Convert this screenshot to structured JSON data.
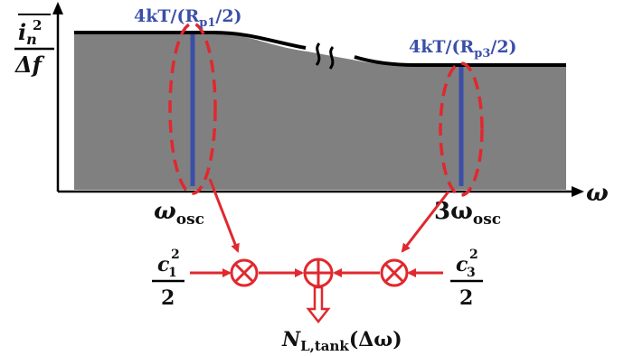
{
  "labels": {
    "y_axis_numerator_base": "i",
    "y_axis_numerator_sub": "n",
    "y_axis_numerator_sup": "2",
    "y_axis_denominator": "Δf",
    "x_axis": "ω",
    "peak1": {
      "prefix": "4kT/(R",
      "sub": "p1",
      "suffix": "/2)"
    },
    "peak3": {
      "prefix": "4kT/(R",
      "sub": "p3",
      "suffix": "/2)"
    },
    "freq1": {
      "base": "ω",
      "sub": "osc"
    },
    "freq3": {
      "base": "3ω",
      "sub": "osc"
    },
    "coef1": {
      "base": "c",
      "sub": "1",
      "sup": "2",
      "den": "2"
    },
    "coef3": {
      "base": "c",
      "sub": "3",
      "sup": "2",
      "den": "2"
    },
    "output": {
      "base": "N",
      "sub": "L,tank",
      "arg": "(Δω)"
    },
    "break_mark": "≈"
  },
  "colors": {
    "noise_fill": "#808080",
    "curve": "#000000",
    "harmonic_line": "#3b4fa8",
    "signal_path": "#e0282e",
    "label_blue": "#3b4fa8"
  },
  "icons": {
    "multiplier": "circle-times-icon",
    "adder": "circle-plus-icon"
  }
}
